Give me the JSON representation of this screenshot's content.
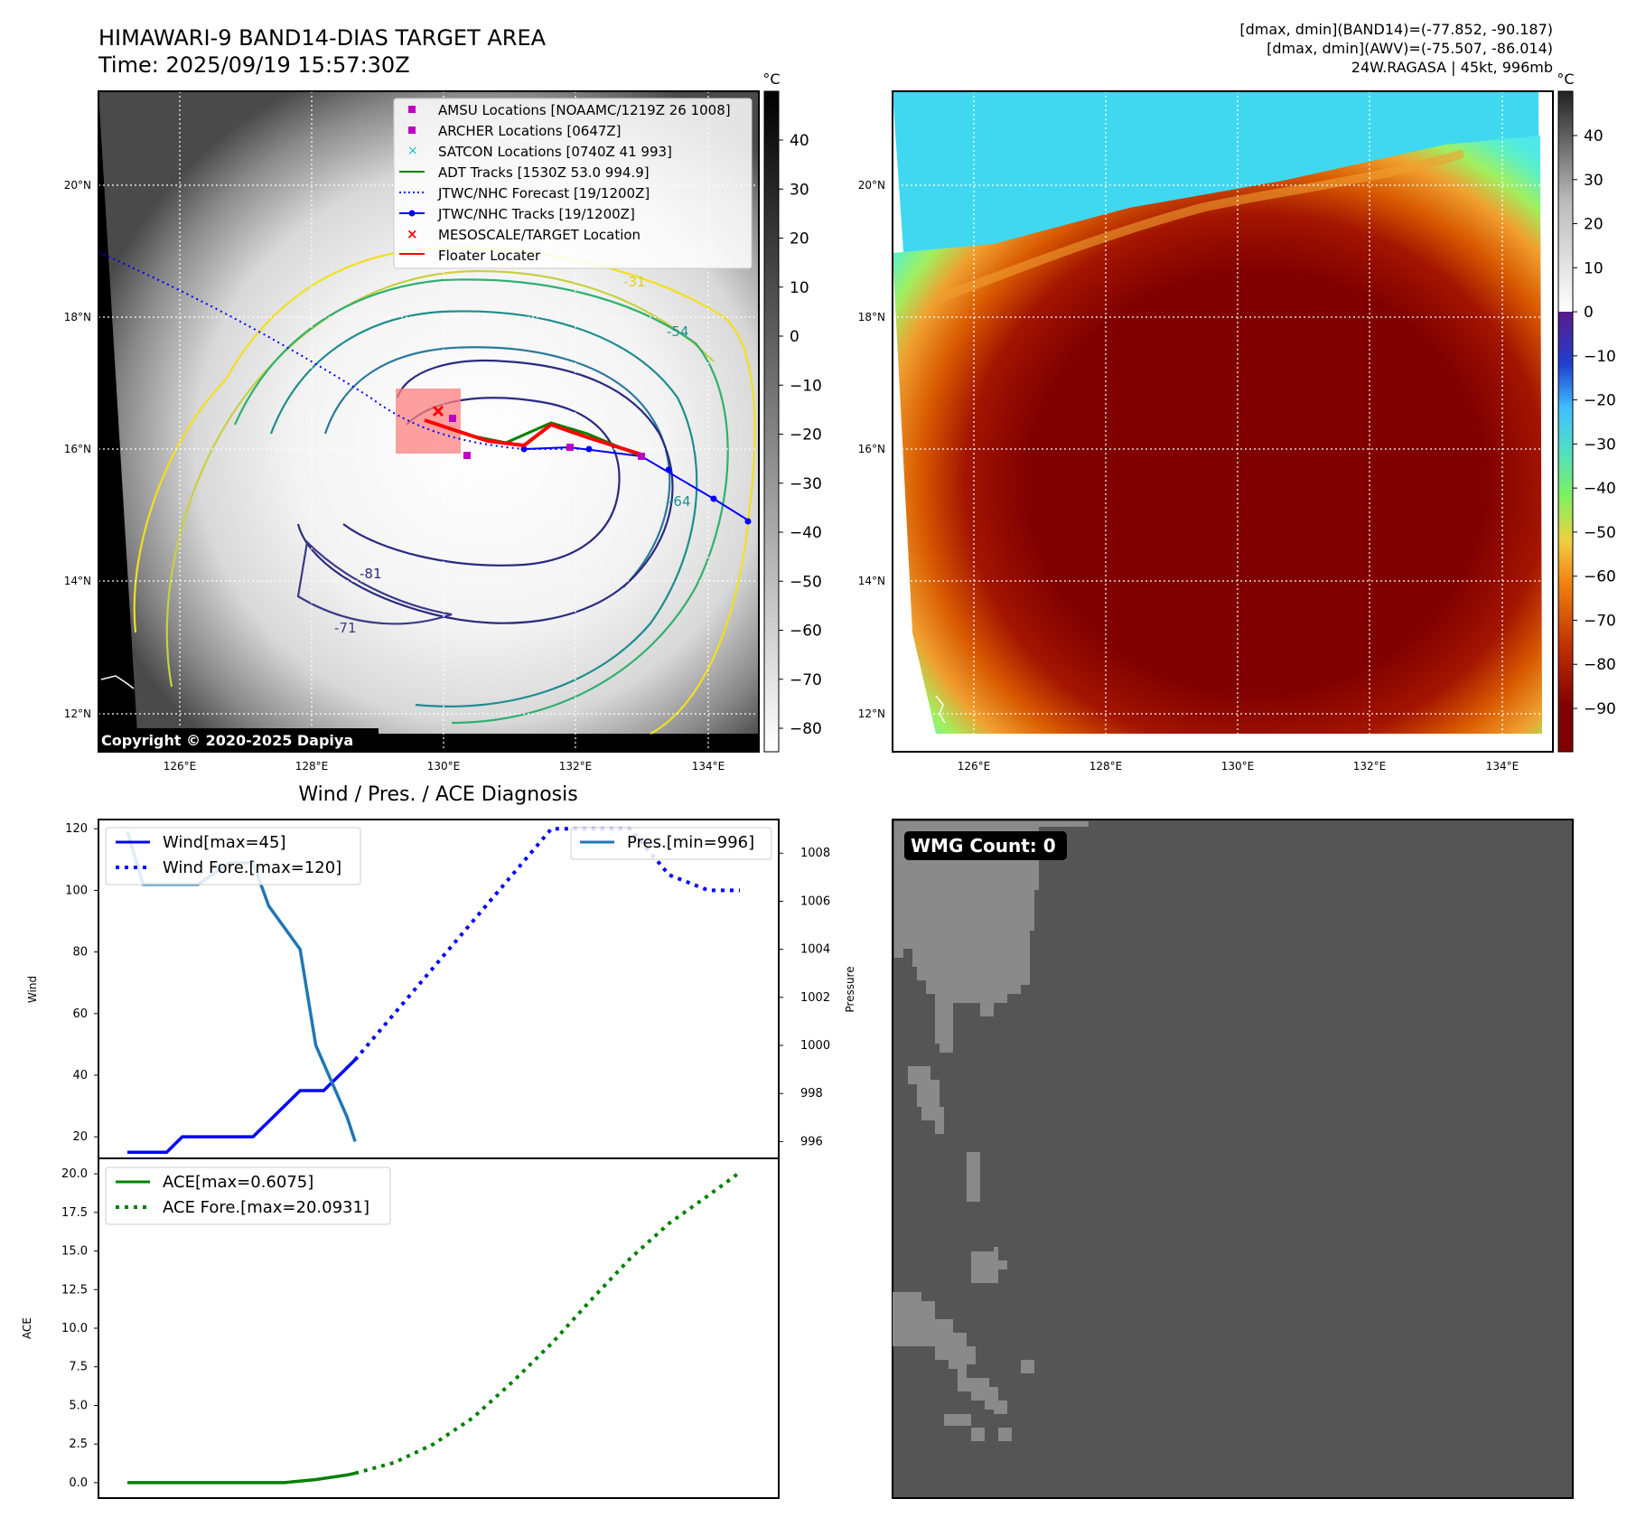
{
  "header": {
    "title": "HIMAWARI-9 BAND14-DIAS TARGET AREA",
    "time": "Time: 2025/09/19 15:57:30Z",
    "dmax_band14": "[dmax, dmin](BAND14)=(-77.852, -90.187)",
    "dmax_awv": "[dmax, dmin](AWV)=(-75.507, -86.014)",
    "storm": "24W.RAGASA | 45kt, 996mb",
    "copyright": "Copyright © 2020-2025 Dapiya"
  },
  "map": {
    "lon_ticks": [
      "126°E",
      "128°E",
      "130°E",
      "132°E",
      "134°E"
    ],
    "lat_ticks": [
      "20°N",
      "18°N",
      "16°N",
      "14°N",
      "12°N"
    ],
    "unit": "°C",
    "colorbar_gray_ticks": [
      "40",
      "30",
      "20",
      "10",
      "0",
      "−10",
      "−20",
      "−30",
      "−40",
      "−50",
      "−60",
      "−70",
      "−80"
    ],
    "colorbar_color_ticks": [
      "40",
      "30",
      "20",
      "10",
      "0",
      "−10",
      "−20",
      "−30",
      "−40",
      "−50",
      "−60",
      "−70",
      "−80",
      "−90"
    ],
    "legend": [
      "AMSU Locations [NOAAMC/1219Z 26 1008]",
      "ARCHER Locations [0647Z]",
      "SATCON Locations [0740Z 41 993]",
      "ADT Tracks [1530Z 53.0 994.9]",
      "JTWC/NHC Forecast [19/1200Z]",
      "JTWC/NHC Tracks [19/1200Z]",
      "MESOSCALE/TARGET Location",
      "Floater Locater"
    ],
    "contour_labels": [
      "-31",
      "-54",
      "-64",
      "-71",
      "-81"
    ],
    "colors": {
      "amsu": "#c000c0",
      "satcon": "#20c0c0",
      "adt": "#008000",
      "jtwc": "#0000ff",
      "target": "#ff0000"
    }
  },
  "chart_data": [
    {
      "type": "line",
      "title": "Wind / Pres. / ACE Diagnosis",
      "ylabel": "Wind",
      "ylabel_right": "Pressure",
      "x": [
        0,
        1,
        2,
        3,
        4,
        5,
        6,
        7,
        8,
        9,
        10,
        11,
        12,
        13,
        14,
        15,
        16,
        17,
        18,
        19,
        20,
        21,
        22,
        23,
        24,
        25,
        26,
        27,
        28,
        29,
        30,
        31,
        32,
        33,
        34,
        35,
        36,
        37,
        38,
        39,
        40,
        41,
        42,
        43,
        44,
        45,
        46,
        47,
        48,
        49,
        50,
        51,
        52,
        53,
        54,
        55,
        56,
        57,
        58,
        59,
        60,
        61,
        62,
        63,
        64,
        65,
        66,
        67,
        68,
        69,
        70,
        71,
        72,
        73,
        74,
        75,
        76,
        77,
        78
      ],
      "ylim": [
        13,
        123
      ],
      "ylim_right": [
        995.3,
        1009.4
      ],
      "yticks": [
        20,
        40,
        60,
        80,
        100,
        120
      ],
      "yticks_right": [
        996,
        998,
        1000,
        1002,
        1004,
        1006,
        1008
      ],
      "series": [
        {
          "name": "Wind[max=45]",
          "axis": "left",
          "style": "solid",
          "color": "#0000ff",
          "x": [
            0,
            5,
            7,
            16,
            22,
            25,
            29
          ],
          "values": [
            15,
            15,
            20,
            20,
            35,
            35,
            45
          ]
        },
        {
          "name": "Wind Fore.[max=120]",
          "axis": "left",
          "style": "dotted",
          "color": "#0000ff",
          "x": [
            29,
            34,
            39,
            44,
            49,
            54,
            59,
            64,
            69,
            74,
            78
          ],
          "values": [
            45,
            60,
            75,
            90,
            105,
            120,
            120,
            120,
            105,
            100,
            100
          ]
        },
        {
          "name": "Pres.[min=996]",
          "axis": "right",
          "style": "solid",
          "color": "#1f77b4",
          "x": [
            0,
            2,
            9,
            13,
            16,
            18,
            22,
            24,
            26,
            28,
            29
          ],
          "values": [
            1008.9,
            1006.7,
            1006.7,
            1007.6,
            1007.6,
            1005.8,
            1004.0,
            1000.0,
            998.5,
            997.0,
            996.0
          ]
        }
      ],
      "legend_right": "Pres.[min=996]"
    },
    {
      "type": "line",
      "ylabel": "ACE",
      "ylim": [
        -1.0,
        21.0
      ],
      "yticks": [
        0.0,
        2.5,
        5.0,
        7.5,
        10.0,
        12.5,
        15.0,
        17.5,
        20.0
      ],
      "series": [
        {
          "name": "ACE[max=0.6075]",
          "style": "solid",
          "color": "#008000",
          "x": [
            0,
            10,
            20,
            24,
            28,
            29
          ],
          "values": [
            0,
            0,
            0,
            0.2,
            0.5,
            0.6075
          ]
        },
        {
          "name": "ACE Fore.[max=20.0931]",
          "style": "dotted",
          "color": "#008000",
          "x": [
            29,
            34,
            39,
            44,
            49,
            54,
            59,
            64,
            69,
            74,
            78
          ],
          "values": [
            0.6075,
            1.3,
            2.5,
            4.2,
            6.5,
            9.0,
            11.8,
            14.5,
            16.8,
            18.6,
            20.0931
          ]
        }
      ]
    }
  ],
  "wmg": {
    "label": "WMG Count: 0"
  }
}
